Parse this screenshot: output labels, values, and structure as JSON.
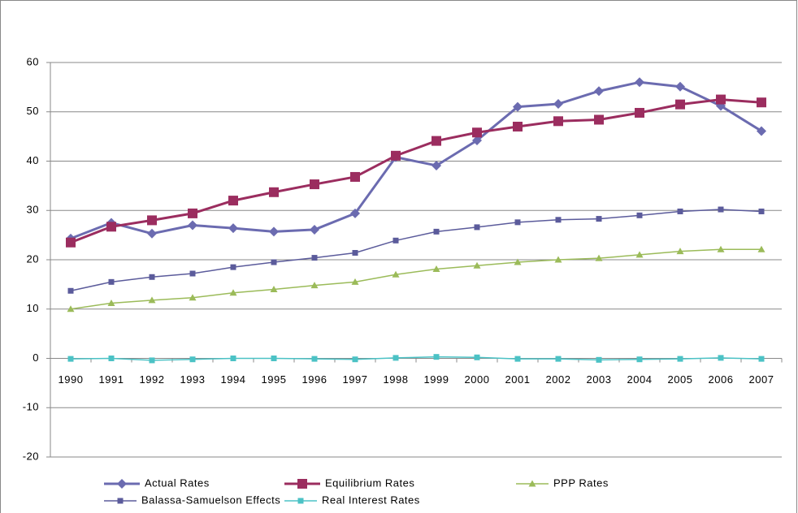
{
  "chart_data": {
    "type": "line",
    "categories": [
      "1990",
      "1991",
      "1992",
      "1993",
      "1994",
      "1995",
      "1996",
      "1997",
      "1998",
      "1999",
      "2000",
      "2001",
      "2002",
      "2003",
      "2004",
      "2005",
      "2006",
      "2007"
    ],
    "series": [
      {
        "name": "Actual Rates",
        "color": "#6b6bb0",
        "marker": "diamond",
        "width": 3,
        "values": [
          24.3,
          27.5,
          25.3,
          27.0,
          26.4,
          25.7,
          26.1,
          29.4,
          40.8,
          39.1,
          44.2,
          51.0,
          51.6,
          54.2,
          56.0,
          55.1,
          51.2,
          46.1
        ]
      },
      {
        "name": "Equilibrium Rates",
        "color": "#9b2d5f",
        "marker": "square",
        "width": 3,
        "values": [
          23.5,
          26.7,
          28.0,
          29.4,
          32.0,
          33.7,
          35.3,
          36.8,
          41.1,
          44.1,
          45.8,
          47.0,
          48.1,
          48.4,
          49.8,
          51.5,
          52.5,
          51.9
        ]
      },
      {
        "name": "PPP Rates",
        "color": "#9bbb59",
        "marker": "triangle",
        "width": 1.5,
        "values": [
          10.0,
          11.2,
          11.8,
          12.3,
          13.3,
          14.0,
          14.8,
          15.5,
          17.0,
          18.1,
          18.8,
          19.5,
          20.0,
          20.3,
          21.0,
          21.7,
          22.1,
          22.1
        ]
      },
      {
        "name": "Balassa-Samuelson Effects",
        "color": "#5b5b9b",
        "marker": "small-square",
        "width": 1.5,
        "values": [
          13.7,
          15.5,
          16.5,
          17.2,
          18.5,
          19.5,
          20.4,
          21.4,
          23.9,
          25.7,
          26.6,
          27.6,
          28.1,
          28.3,
          29.0,
          29.8,
          30.2,
          29.8
        ]
      },
      {
        "name": "Real Interest Rates",
        "color": "#4bc2c5",
        "marker": "small-square",
        "width": 1.5,
        "values": [
          -0.1,
          0.0,
          -0.4,
          -0.2,
          0.0,
          0.0,
          -0.1,
          -0.2,
          0.1,
          0.3,
          0.2,
          -0.1,
          -0.1,
          -0.3,
          -0.2,
          -0.1,
          0.1,
          -0.1
        ]
      }
    ],
    "ylim": [
      -20,
      60
    ],
    "yticks": [
      -20,
      -10,
      0,
      10,
      20,
      30,
      40,
      50,
      60
    ],
    "grid": true,
    "legend": "bottom"
  }
}
